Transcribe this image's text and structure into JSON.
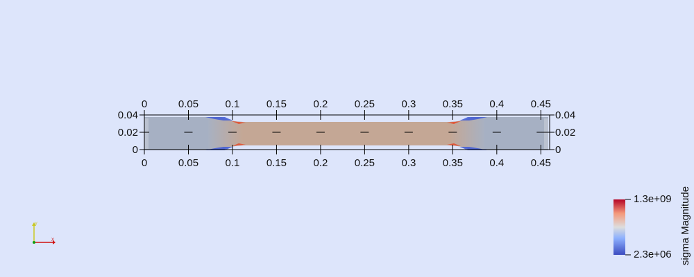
{
  "viewer": {
    "background_color": "#dde5fb",
    "axes": {
      "x_ticks": [
        "0",
        "0.05",
        "0.1",
        "0.15",
        "0.2",
        "0.25",
        "0.3",
        "0.35",
        "0.4",
        "0.45"
      ],
      "y_ticks": [
        "0",
        "0.02",
        "0.04"
      ]
    },
    "specimen": {
      "shape": "dog-bone tensile specimen",
      "grip_color": "#a6b0c3",
      "gauge_color": "#c4a795",
      "low_stress_color": "#3f5ad6",
      "high_stress_color": "#e0593b"
    },
    "colorbar": {
      "title": "sigma Magnitude",
      "max_label": "1.3e+09",
      "min_label": "2.3e+06",
      "colors": [
        "#3b4cc0",
        "#8db0fe",
        "#dddddd",
        "#f4987a",
        "#b40426"
      ]
    },
    "orientation_icon": "axes-triad-icon"
  }
}
